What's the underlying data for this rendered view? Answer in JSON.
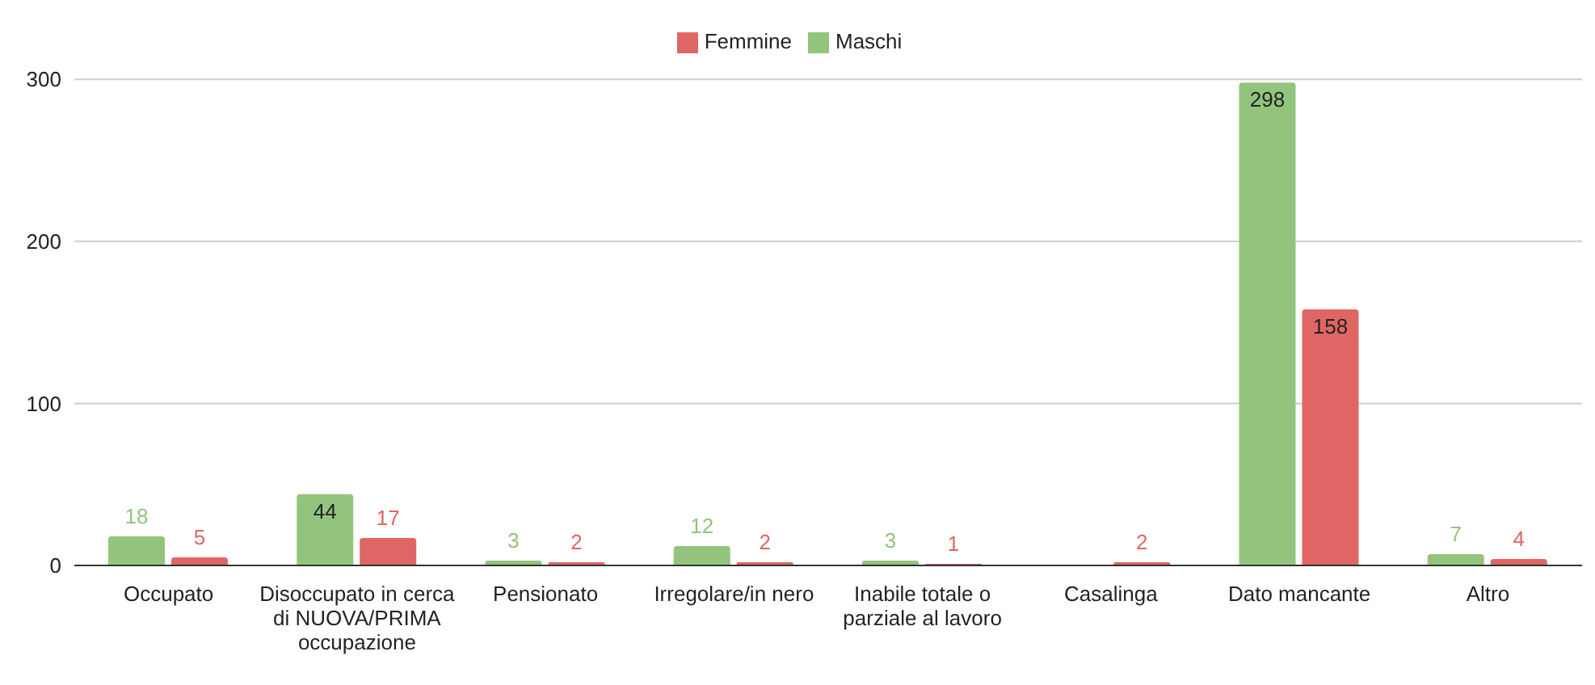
{
  "chart_data": {
    "type": "bar",
    "categories": [
      "Occupato",
      "Disoccupato in cerca di NUOVA/PRIMA occupazione",
      "Pensionato",
      "Irregolare/in nero",
      "Inabile totale o parziale al lavoro",
      "Casalinga",
      "Dato mancante",
      "Altro"
    ],
    "series": [
      {
        "name": "Maschi",
        "color": "#93c47d",
        "values": [
          18,
          44,
          3,
          12,
          3,
          null,
          298,
          7
        ]
      },
      {
        "name": "Femmine",
        "color": "#e06666",
        "values": [
          5,
          17,
          2,
          2,
          1,
          2,
          158,
          4
        ]
      }
    ],
    "ylim": [
      0,
      300
    ],
    "yticks": [
      0,
      100,
      200,
      300
    ],
    "grid": "y",
    "legend": "top",
    "data_labels": true
  }
}
